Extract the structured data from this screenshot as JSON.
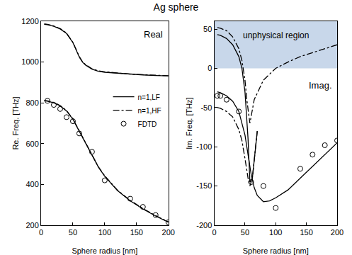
{
  "chart_data": [
    {
      "type": "line",
      "title": "Ag sphere",
      "annotations": [
        "Real"
      ],
      "x_label": "Sphere radius [nm]",
      "y_label": "Re. Freq. [THz]",
      "xlim": [
        0,
        200
      ],
      "xticks": [
        0,
        50,
        100,
        150,
        200
      ],
      "ylim": [
        200,
        1200
      ],
      "yticks": [
        200,
        400,
        600,
        800,
        1000,
        1200
      ],
      "grid": false,
      "legend": "right",
      "series": [
        {
          "name": "n=1,LF",
          "type": "line",
          "line_style": "solid",
          "marker": "none",
          "color": "#000000",
          "x": [
            5,
            10,
            20,
            30,
            40,
            50,
            55,
            60,
            70,
            80,
            90,
            100,
            120,
            140,
            160,
            180,
            200
          ],
          "values": [
            810,
            808,
            800,
            785,
            760,
            720,
            690,
            660,
            600,
            540,
            485,
            440,
            370,
            320,
            280,
            245,
            215
          ]
        },
        {
          "name": "n=1,LF",
          "type": "line",
          "line_style": "solid",
          "marker": "none",
          "color": "#000000",
          "x": [
            5,
            10,
            20,
            30,
            40,
            50,
            55,
            60,
            65,
            70,
            80,
            90,
            100,
            120,
            140,
            160,
            180,
            200
          ],
          "values": [
            1185,
            1183,
            1175,
            1162,
            1140,
            1095,
            1060,
            1025,
            1000,
            985,
            965,
            955,
            950,
            945,
            940,
            937,
            934,
            932
          ]
        },
        {
          "name": "n=1,HF",
          "type": "line",
          "line_style": "dashdot",
          "marker": "none",
          "color": "#000000",
          "x": [
            5,
            10,
            20,
            30,
            40,
            50,
            55,
            60,
            70,
            80,
            90,
            100,
            120,
            140,
            160,
            180,
            200
          ],
          "values": [
            812,
            810,
            802,
            787,
            762,
            722,
            692,
            662,
            602,
            542,
            487,
            442,
            372,
            322,
            282,
            247,
            217
          ]
        },
        {
          "name": "n=1,HF",
          "type": "line",
          "line_style": "dashdot",
          "marker": "none",
          "color": "#000000",
          "x": [
            5,
            10,
            20,
            30,
            40,
            50,
            55,
            60,
            65,
            70,
            80,
            90,
            100,
            120,
            140,
            160,
            180,
            200
          ],
          "values": [
            1187,
            1185,
            1177,
            1164,
            1142,
            1097,
            1062,
            1027,
            1002,
            987,
            967,
            957,
            952,
            946,
            941,
            938,
            935,
            933
          ]
        },
        {
          "name": "FDTD",
          "type": "scatter",
          "marker": "circle-open",
          "color": "#000000",
          "x": [
            10,
            20,
            30,
            40,
            50,
            60,
            80,
            100,
            140,
            160,
            180,
            200
          ],
          "values": [
            810,
            790,
            770,
            730,
            710,
            650,
            560,
            420,
            330,
            290,
            250,
            215
          ]
        }
      ]
    },
    {
      "type": "line",
      "annotations": [
        "Imag."
      ],
      "x_label": "Sphere radius [nm]",
      "y_label": "Im. Freq. [THz]",
      "xlim": [
        0,
        200
      ],
      "xticks": [
        0,
        50,
        100,
        150,
        200
      ],
      "ylim": [
        -200,
        60
      ],
      "yticks": [
        -200,
        -150,
        -100,
        -50,
        0,
        50
      ],
      "grid": false,
      "region": {
        "y": [
          0,
          60
        ],
        "text": "unphysical region",
        "color": "#c8d7ea"
      },
      "series": [
        {
          "name": "n=1,LF",
          "type": "line",
          "line_style": "solid",
          "marker": "none",
          "color": "#000000",
          "x": [
            5,
            10,
            20,
            30,
            40,
            50,
            55,
            60,
            65,
            70,
            80,
            90,
            100,
            120,
            140,
            160,
            180,
            200
          ],
          "values": [
            -30,
            -31,
            -35,
            -42,
            -55,
            -85,
            -110,
            -135,
            -152,
            -162,
            -170,
            -169,
            -165,
            -155,
            -140,
            -125,
            -110,
            -95
          ]
        },
        {
          "name": "n=1,LF",
          "type": "line",
          "line_style": "solid",
          "marker": "none",
          "color": "#000000",
          "x": [
            5,
            10,
            20,
            30,
            40,
            45,
            50,
            55,
            58,
            62,
            66,
            70
          ],
          "values": [
            43,
            42,
            38,
            30,
            15,
            0,
            -30,
            -90,
            -145,
            -140,
            -110,
            -80
          ]
        },
        {
          "name": "n=1,HF",
          "type": "line",
          "line_style": "dashdot",
          "marker": "none",
          "color": "#000000",
          "x": [
            5,
            10,
            20,
            30,
            40,
            45,
            50,
            55,
            58,
            62,
            66,
            70
          ],
          "values": [
            -50,
            -51,
            -55,
            -62,
            -78,
            -92,
            -115,
            -140,
            -150,
            -140,
            -110,
            -80
          ]
        },
        {
          "name": "n=1,HF",
          "type": "line",
          "line_style": "dashdot",
          "marker": "none",
          "color": "#000000",
          "x": [
            5,
            10,
            20,
            30,
            40,
            45,
            50,
            53,
            58,
            65,
            80,
            100,
            120,
            140,
            160,
            180,
            200
          ],
          "values": [
            52,
            51,
            48,
            40,
            25,
            10,
            -15,
            -40,
            -70,
            -40,
            -15,
            0,
            8,
            15,
            20,
            25,
            30
          ]
        },
        {
          "name": "FDTD",
          "type": "scatter",
          "marker": "circle-open",
          "color": "#000000",
          "x": [
            5,
            10,
            20,
            40,
            60,
            80,
            100,
            140,
            160,
            180,
            200
          ],
          "values": [
            -35,
            -35,
            -40,
            -55,
            -145,
            -150,
            -178,
            -128,
            -110,
            -98,
            -92
          ]
        }
      ]
    }
  ]
}
